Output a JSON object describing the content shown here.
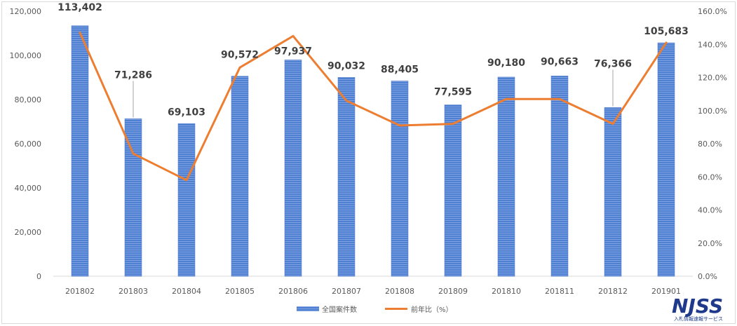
{
  "chart_data": {
    "type": "bar",
    "categories": [
      "201802",
      "201803",
      "201804",
      "201805",
      "201806",
      "201807",
      "201808",
      "201809",
      "201810",
      "201811",
      "201812",
      "201901"
    ],
    "series": [
      {
        "name": "全国案件数",
        "type": "bar",
        "axis": "left",
        "color": "#4472c4",
        "values": [
          113402,
          71286,
          69103,
          90572,
          97937,
          90032,
          88405,
          77595,
          90180,
          90663,
          76366,
          105683
        ],
        "labels": [
          "113,402",
          "71,286",
          "69,103",
          "90,572",
          "97,937",
          "90,032",
          "88,405",
          "77,595",
          "90,180",
          "90,663",
          "76,366",
          "105,683"
        ]
      },
      {
        "name": "前年比（%）",
        "type": "line",
        "axis": "right",
        "color": "#ed7d31",
        "values": [
          147,
          74,
          58,
          126,
          145,
          106,
          91,
          92,
          107,
          107,
          92,
          141
        ]
      }
    ],
    "y_left": {
      "min": 0,
      "max": 120000,
      "step": 20000,
      "ticks": [
        "0",
        "20,000",
        "40,000",
        "60,000",
        "80,000",
        "100,000",
        "120,000"
      ]
    },
    "y_right": {
      "min": 0,
      "max": 160,
      "step": 20,
      "ticks": [
        "0.0%",
        "20.0%",
        "40.0%",
        "60.0%",
        "80.0%",
        "100.0%",
        "120.0%",
        "140.0%",
        "160.0%"
      ]
    },
    "grid": false,
    "legend_position": "bottom"
  },
  "logo": {
    "name": "NJSS",
    "tagline": "入札情報速報サービス"
  }
}
